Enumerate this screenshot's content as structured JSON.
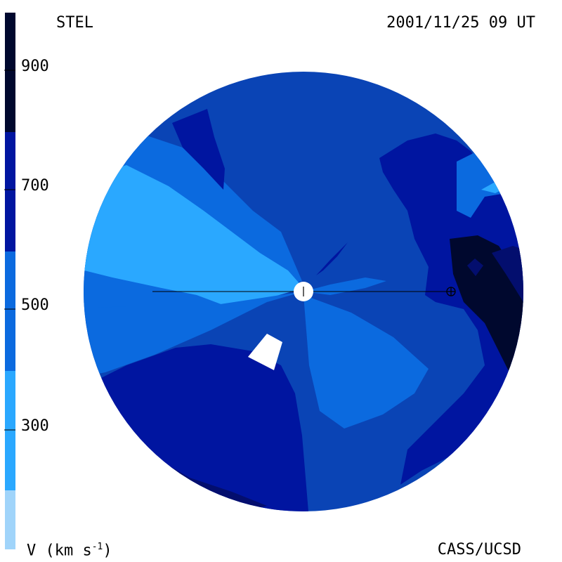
{
  "header": {
    "left_label": "STEL",
    "right_label": "2001/11/25 09 UT"
  },
  "footer": {
    "left_label": "V (km s",
    "left_label_exp": "-1",
    "left_label_close": ")",
    "right_label": "CASS/UCSD"
  },
  "colorbar": {
    "ticks": [
      "900",
      "700",
      "500",
      "300"
    ],
    "colors": [
      "#a0d4fa",
      "#2aa8ff",
      "#0b6adf",
      "#0a44b5",
      "#0015a0",
      "#030e6e",
      "#00082e"
    ]
  },
  "map": {
    "colors": {
      "band_300": "#2aa8ff",
      "band_400": "#0b6adf",
      "band_500": "#0a44b5",
      "band_600": "#0015a0",
      "band_700": "#030e6e",
      "band_800": "#00082e",
      "sun": "#ffffff"
    }
  }
}
